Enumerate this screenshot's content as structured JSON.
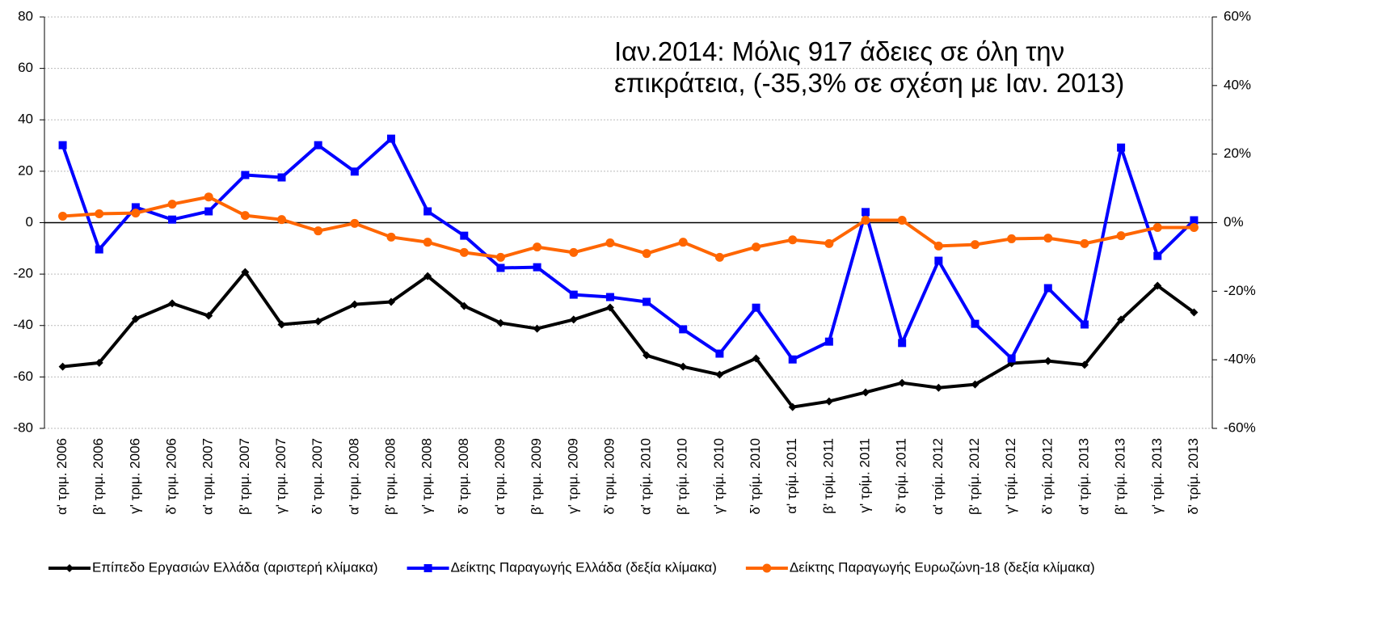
{
  "chart_data": {
    "type": "line",
    "annotation": [
      "Ιαν.2014: Μόλις 917 άδειες σε όλη την",
      "επικράτεια, (-35,3% σε σχέση με Ιαν. 2013)"
    ],
    "categories": [
      "α' τριμ. 2006",
      "β' τριμ. 2006",
      "γ' τριμ. 2006",
      "δ' τριμ. 2006",
      "α' τριμ. 2007",
      "β' τριμ. 2007",
      "γ' τριμ. 2007",
      "δ' τριμ. 2007",
      "α' τριμ. 2008",
      "β' τριμ. 2008",
      "γ' τριμ. 2008",
      "δ' τριμ. 2008",
      "α' τριμ. 2009",
      "β' τριμ. 2009",
      "γ' τριμ. 2009",
      "δ' τριμ. 2009",
      "α' τρίμ. 2010",
      "β' τρίμ. 2010",
      "γ' τρίμ. 2010",
      "δ' τρίμ. 2010",
      "α' τρίμ. 2011",
      "β' τρίμ. 2011",
      "γ' τρίμ. 2011",
      "δ' τρίμ. 2011",
      "α' τρίμ. 2012",
      "β' τρίμ. 2012",
      "γ' τρίμ. 2012",
      "δ' τρίμ. 2012",
      "α' τρίμ. 2013",
      "β' τρίμ. 2013",
      "γ' τρίμ. 2013",
      "δ' τρίμ. 2013"
    ],
    "series": [
      {
        "name": "Επίπεδο Εργασιών Ελλάδα (αριστερή κλίμακα)",
        "color": "#000000",
        "marker": "diamond",
        "values": [
          -56,
          -54.5,
          -37.4,
          -31.4,
          -36.2,
          -19.2,
          -39.6,
          -38.4,
          -31.8,
          -30.8,
          -20.8,
          -32.4,
          -39,
          -41.2,
          -37.7,
          -33,
          -51.6,
          -56,
          -59.1,
          -52.8,
          -71.7,
          -69.5,
          -66,
          -62.3,
          -64.2,
          -62.9,
          -54.7,
          -53.8,
          -55.3,
          -37.7,
          -24.5,
          -34.9
        ]
      },
      {
        "name": "Δείκτης Παραγωγής Ελλάδα (δεξία κλίμακα)",
        "color": "#0000ff",
        "marker": "square",
        "axis": "y2",
        "values": [
          22.6,
          -7.8,
          4.5,
          0.9,
          3.3,
          13.9,
          13.2,
          22.6,
          14.9,
          24.5,
          3.3,
          -3.8,
          -13.2,
          -13,
          -21,
          -21.7,
          -23.1,
          -31.1,
          -38.2,
          -24.8,
          -39.9,
          -34.7,
          3.1,
          -35.1,
          -11.1,
          -29.5,
          -39.6,
          -19.1,
          -29.7,
          21.9,
          -9.7,
          0.7
        ]
      },
      {
        "name": "Δείκτης Παραγωγής Ευρωζώνη-18 (δεξία κλίμακα)",
        "color": "#ff6600",
        "marker": "circle",
        "axis": "y2",
        "values": [
          1.9,
          2.6,
          2.8,
          5.4,
          7.5,
          2.1,
          0.9,
          -2.4,
          -0.2,
          -4.2,
          -5.7,
          -8.7,
          -10.1,
          -7.1,
          -8.7,
          -5.9,
          -9,
          -5.7,
          -10.1,
          -7.1,
          -5,
          -6.1,
          0.7,
          0.7,
          -6.8,
          -6.4,
          -4.7,
          -4.5,
          -6.1,
          -3.8,
          -1.4,
          -1.4
        ]
      }
    ],
    "ylim": [
      -80,
      80
    ],
    "yticks": [
      -80,
      -60,
      -40,
      -20,
      0,
      20,
      40,
      60,
      80
    ],
    "y2lim": [
      -60,
      60
    ],
    "y2ticks": [
      {
        "value": -60,
        "label": "-60%"
      },
      {
        "value": -40,
        "label": "-40%"
      },
      {
        "value": -20,
        "label": "-20%"
      },
      {
        "value": 0,
        "label": "0%"
      },
      {
        "value": 20,
        "label": "20%"
      },
      {
        "value": 40,
        "label": "40%"
      },
      {
        "value": 60,
        "label": "60%"
      }
    ],
    "grid": true,
    "legend": "bottom"
  }
}
